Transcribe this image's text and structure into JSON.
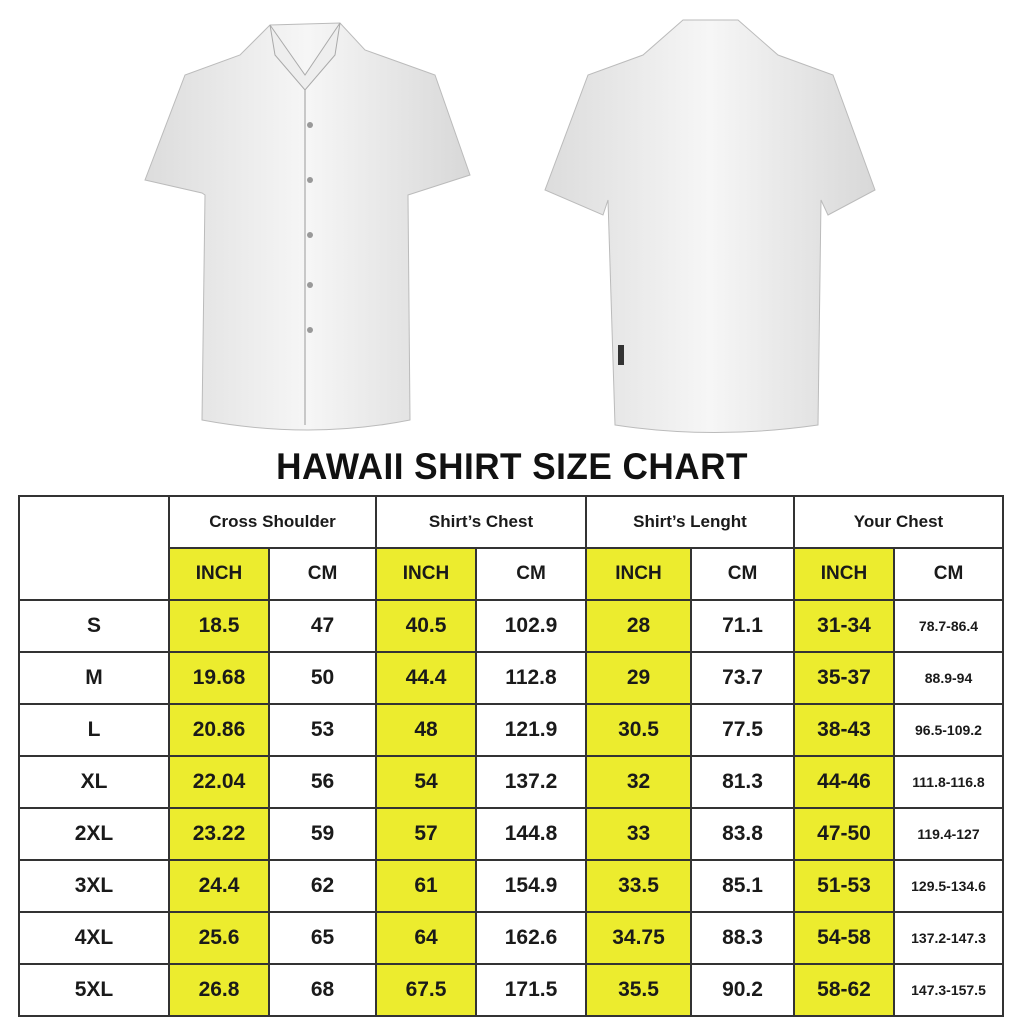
{
  "title": "HAWAII SHIRT SIZE CHART",
  "colors": {
    "inch_highlight": "#ecec2e",
    "border": "#333333"
  },
  "images": [
    "shirt-front",
    "shirt-back"
  ],
  "groups": [
    "Cross Shoulder",
    "Shirt’s Chest",
    "Shirt’s Lenght",
    "Your Chest"
  ],
  "units": {
    "inch": "INCH",
    "cm": "CM"
  },
  "rows": [
    {
      "size": "S",
      "values": [
        "18.5",
        "47",
        "40.5",
        "102.9",
        "28",
        "71.1",
        "31-34",
        "78.7-86.4"
      ]
    },
    {
      "size": "M",
      "values": [
        "19.68",
        "50",
        "44.4",
        "112.8",
        "29",
        "73.7",
        "35-37",
        "88.9-94"
      ]
    },
    {
      "size": "L",
      "values": [
        "20.86",
        "53",
        "48",
        "121.9",
        "30.5",
        "77.5",
        "38-43",
        "96.5-109.2"
      ]
    },
    {
      "size": "XL",
      "values": [
        "22.04",
        "56",
        "54",
        "137.2",
        "32",
        "81.3",
        "44-46",
        "111.8-116.8"
      ]
    },
    {
      "size": "2XL",
      "values": [
        "23.22",
        "59",
        "57",
        "144.8",
        "33",
        "83.8",
        "47-50",
        "119.4-127"
      ]
    },
    {
      "size": "3XL",
      "values": [
        "24.4",
        "62",
        "61",
        "154.9",
        "33.5",
        "85.1",
        "51-53",
        "129.5-134.6"
      ]
    },
    {
      "size": "4XL",
      "values": [
        "25.6",
        "65",
        "64",
        "162.6",
        "34.75",
        "88.3",
        "54-58",
        "137.2-147.3"
      ]
    },
    {
      "size": "5XL",
      "values": [
        "26.8",
        "68",
        "67.5",
        "171.5",
        "35.5",
        "90.2",
        "58-62",
        "147.3-157.5"
      ]
    }
  ]
}
